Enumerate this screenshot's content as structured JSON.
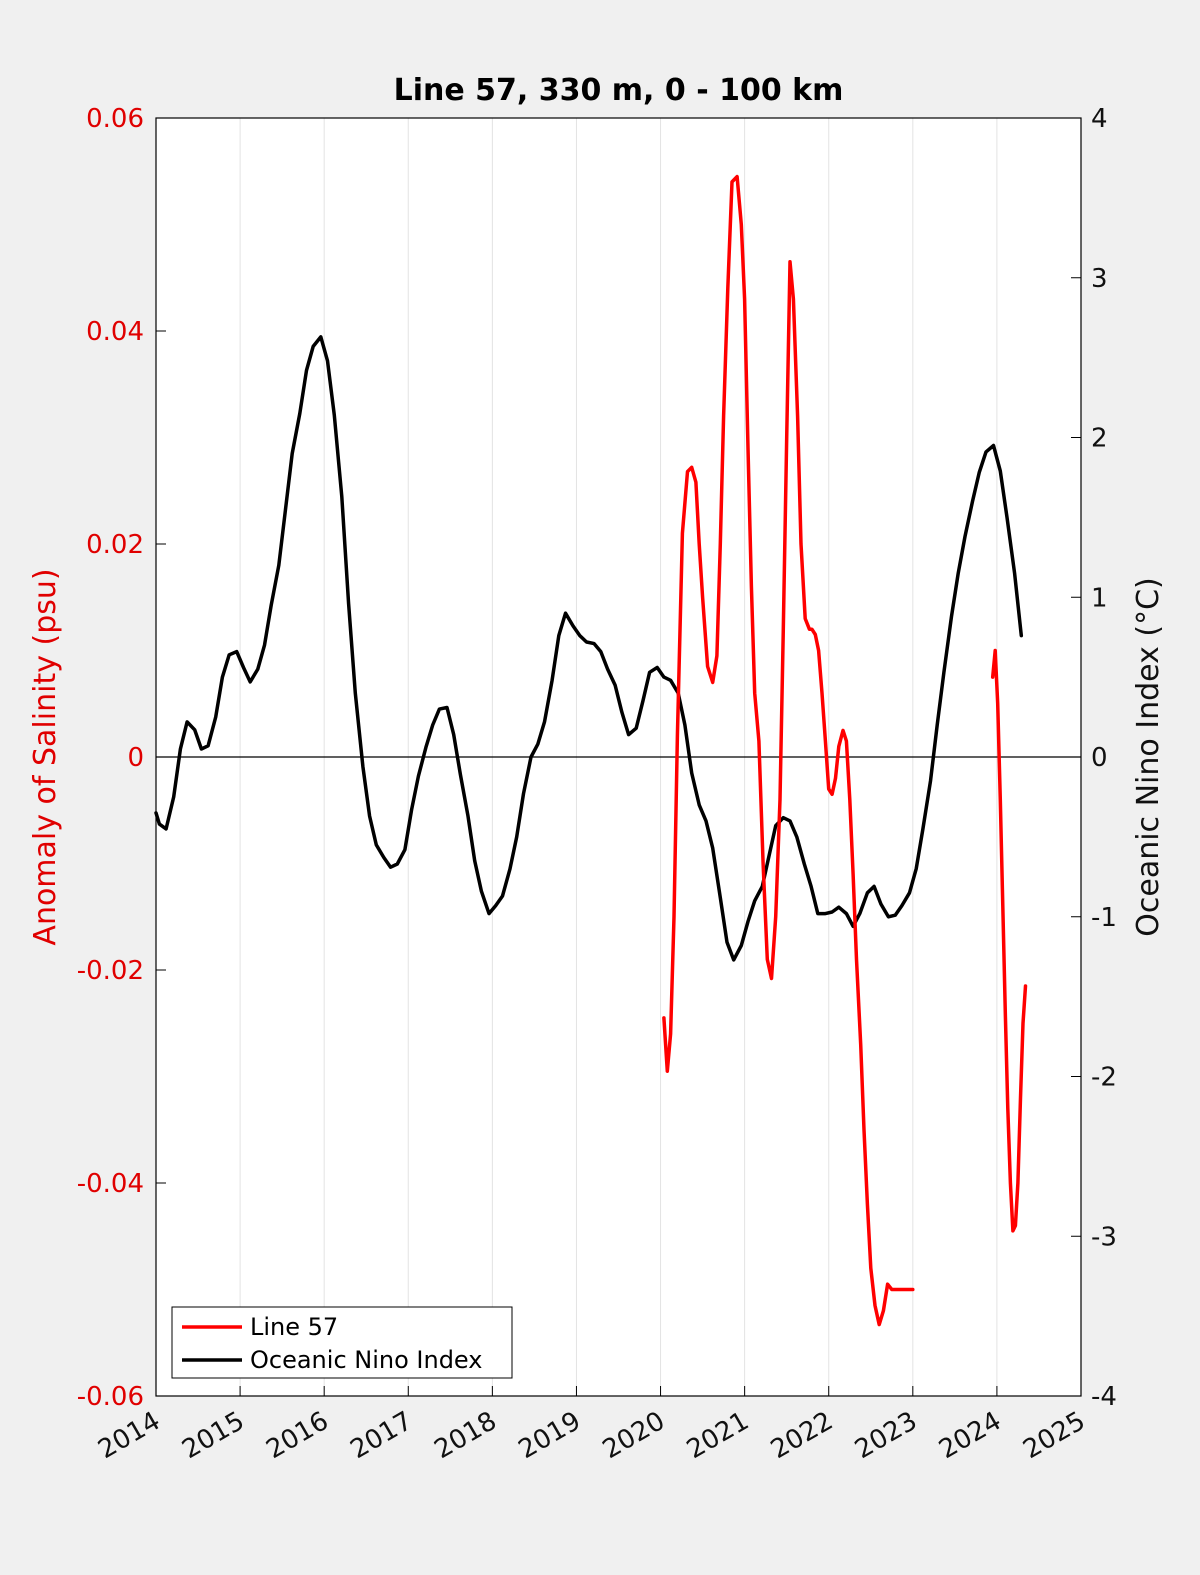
{
  "chart_data": {
    "type": "line",
    "title": "Line 57, 330 m, 0 - 100 km",
    "ylabel_left": "Anomaly of Salinity (psu)",
    "ylabel_right": "Oceanic Nino Index (°C)",
    "xlim": [
      2014,
      2025
    ],
    "ylim_left": [
      -0.06,
      0.06
    ],
    "ylim_right": [
      -4,
      4
    ],
    "x_ticks": [
      2014,
      2015,
      2016,
      2017,
      2018,
      2019,
      2020,
      2021,
      2022,
      2023,
      2024,
      2025
    ],
    "x_tick_labels": [
      "2014",
      "2015",
      "2016",
      "2017",
      "2018",
      "2019",
      "2020",
      "2021",
      "2022",
      "2023",
      "2024",
      "2025"
    ],
    "y_left_ticks": [
      -0.06,
      -0.04,
      -0.02,
      0,
      0.02,
      0.04,
      0.06
    ],
    "y_left_tick_labels": [
      "-0.06",
      "-0.04",
      "-0.02",
      "0",
      "0.02",
      "0.04",
      "0.06"
    ],
    "y_right_ticks": [
      -4,
      -3,
      -2,
      -1,
      0,
      1,
      2,
      3,
      4
    ],
    "y_right_tick_labels": [
      "-4",
      "-3",
      "-2",
      "-1",
      "0",
      "1",
      "2",
      "3",
      "4"
    ],
    "grid": "vertical",
    "legend_position": "bottom-left",
    "legend": [
      "Line 57",
      "Oceanic Nino Index"
    ],
    "colors": {
      "line57": "#ff0000",
      "oni": "#000000",
      "left_axis": "#e00000"
    },
    "series": [
      {
        "name": "Line 57",
        "axis": "left",
        "segments": [
          {
            "x": [
              2020.04,
              2020.08,
              2020.12,
              2020.16,
              2020.2,
              2020.26,
              2020.32,
              2020.37,
              2020.42,
              2020.46,
              2020.5,
              2020.56,
              2020.62,
              2020.67,
              2020.71,
              2020.75,
              2020.8,
              2020.85,
              2020.91,
              2020.96,
              2021.0,
              2021.04,
              2021.08,
              2021.12,
              2021.17,
              2021.22,
              2021.27,
              2021.32,
              2021.37,
              2021.42,
              2021.46,
              2021.5,
              2021.54,
              2021.58,
              2021.63,
              2021.67,
              2021.72,
              2021.77,
              2021.8,
              2021.84,
              2021.88,
              2021.92,
              2021.96,
              2022.0,
              2022.04,
              2022.08,
              2022.12,
              2022.17,
              2022.21,
              2022.25,
              2022.29,
              2022.33,
              2022.38,
              2022.42,
              2022.46,
              2022.5,
              2022.55,
              2022.6,
              2022.65,
              2022.7,
              2022.75,
              2022.8,
              2022.85,
              2022.9,
              2022.95,
              2023.0
            ],
            "y": [
              -0.0245,
              -0.0295,
              -0.026,
              -0.015,
              0.002,
              0.021,
              0.0268,
              0.0272,
              0.0258,
              0.02,
              0.015,
              0.0085,
              0.007,
              0.0095,
              0.02,
              0.032,
              0.044,
              0.054,
              0.0545,
              0.05,
              0.043,
              0.029,
              0.016,
              0.006,
              0.0015,
              -0.01,
              -0.019,
              -0.0208,
              -0.015,
              -0.004,
              0.012,
              0.03,
              0.0465,
              0.043,
              0.032,
              0.02,
              0.013,
              0.012,
              0.012,
              0.0115,
              0.01,
              0.006,
              0.0015,
              -0.003,
              -0.0035,
              -0.002,
              0.001,
              0.0025,
              0.0015,
              -0.004,
              -0.011,
              -0.019,
              -0.027,
              -0.035,
              -0.042,
              -0.048,
              -0.0515,
              -0.0533,
              -0.052,
              -0.0495,
              -0.05,
              -0.05,
              -0.05,
              -0.05,
              -0.05,
              -0.05
            ]
          },
          {
            "x": [
              2023.95,
              2023.98,
              2024.01,
              2024.04,
              2024.07,
              2024.1,
              2024.13,
              2024.16,
              2024.19,
              2024.22,
              2024.25,
              2024.28,
              2024.31,
              2024.34
            ],
            "y": [
              0.0075,
              0.01,
              0.005,
              -0.004,
              -0.014,
              -0.024,
              -0.033,
              -0.04,
              -0.0445,
              -0.044,
              -0.04,
              -0.032,
              -0.025,
              -0.0215
            ]
          }
        ]
      },
      {
        "name": "Oceanic Nino Index",
        "axis": "right",
        "x": [
          2014.0,
          2014.04,
          2014.12,
          2014.21,
          2014.29,
          2014.37,
          2014.46,
          2014.54,
          2014.62,
          2014.71,
          2014.79,
          2014.87,
          2014.96,
          2015.04,
          2015.12,
          2015.21,
          2015.29,
          2015.37,
          2015.46,
          2015.54,
          2015.62,
          2015.71,
          2015.79,
          2015.87,
          2015.96,
          2016.04,
          2016.12,
          2016.21,
          2016.29,
          2016.37,
          2016.46,
          2016.54,
          2016.62,
          2016.71,
          2016.79,
          2016.87,
          2016.96,
          2017.04,
          2017.12,
          2017.21,
          2017.29,
          2017.37,
          2017.46,
          2017.54,
          2017.62,
          2017.71,
          2017.79,
          2017.87,
          2017.96,
          2018.04,
          2018.12,
          2018.21,
          2018.29,
          2018.37,
          2018.46,
          2018.54,
          2018.62,
          2018.71,
          2018.79,
          2018.87,
          2018.96,
          2019.04,
          2019.12,
          2019.21,
          2019.29,
          2019.37,
          2019.46,
          2019.54,
          2019.62,
          2019.71,
          2019.79,
          2019.87,
          2019.96,
          2020.04,
          2020.12,
          2020.21,
          2020.29,
          2020.37,
          2020.46,
          2020.54,
          2020.62,
          2020.71,
          2020.79,
          2020.87,
          2020.96,
          2021.04,
          2021.12,
          2021.21,
          2021.29,
          2021.37,
          2021.46,
          2021.54,
          2021.62,
          2021.71,
          2021.79,
          2021.87,
          2021.96,
          2022.04,
          2022.12,
          2022.21,
          2022.29,
          2022.37,
          2022.46,
          2022.54,
          2022.62,
          2022.71,
          2022.79,
          2022.87,
          2022.96,
          2023.04,
          2023.12,
          2023.21,
          2023.29,
          2023.37,
          2023.46,
          2023.54,
          2023.62,
          2023.71,
          2023.79,
          2023.87,
          2023.96,
          2024.04,
          2024.12,
          2024.21,
          2024.29
        ],
        "y": [
          -0.35,
          -0.42,
          -0.45,
          -0.25,
          0.05,
          0.22,
          0.17,
          0.05,
          0.07,
          0.25,
          0.5,
          0.64,
          0.66,
          0.56,
          0.47,
          0.55,
          0.7,
          0.95,
          1.2,
          1.55,
          1.9,
          2.15,
          2.42,
          2.57,
          2.63,
          2.48,
          2.14,
          1.63,
          0.96,
          0.4,
          -0.06,
          -0.37,
          -0.55,
          -0.63,
          -0.69,
          -0.67,
          -0.58,
          -0.33,
          -0.12,
          0.06,
          0.2,
          0.3,
          0.31,
          0.14,
          -0.11,
          -0.37,
          -0.65,
          -0.84,
          -0.98,
          -0.93,
          -0.87,
          -0.7,
          -0.5,
          -0.23,
          0.0,
          0.08,
          0.22,
          0.48,
          0.76,
          0.9,
          0.82,
          0.76,
          0.72,
          0.71,
          0.66,
          0.55,
          0.45,
          0.28,
          0.14,
          0.18,
          0.35,
          0.53,
          0.56,
          0.5,
          0.48,
          0.4,
          0.2,
          -0.1,
          -0.3,
          -0.4,
          -0.57,
          -0.88,
          -1.16,
          -1.27,
          -1.18,
          -1.03,
          -0.9,
          -0.81,
          -0.62,
          -0.43,
          -0.38,
          -0.4,
          -0.5,
          -0.67,
          -0.81,
          -0.98,
          -0.98,
          -0.97,
          -0.94,
          -0.98,
          -1.06,
          -0.98,
          -0.85,
          -0.81,
          -0.92,
          -1.0,
          -0.99,
          -0.93,
          -0.85,
          -0.7,
          -0.45,
          -0.15,
          0.2,
          0.53,
          0.88,
          1.15,
          1.38,
          1.6,
          1.78,
          1.91,
          1.95,
          1.79,
          1.5,
          1.15,
          0.76
        ]
      }
    ]
  }
}
